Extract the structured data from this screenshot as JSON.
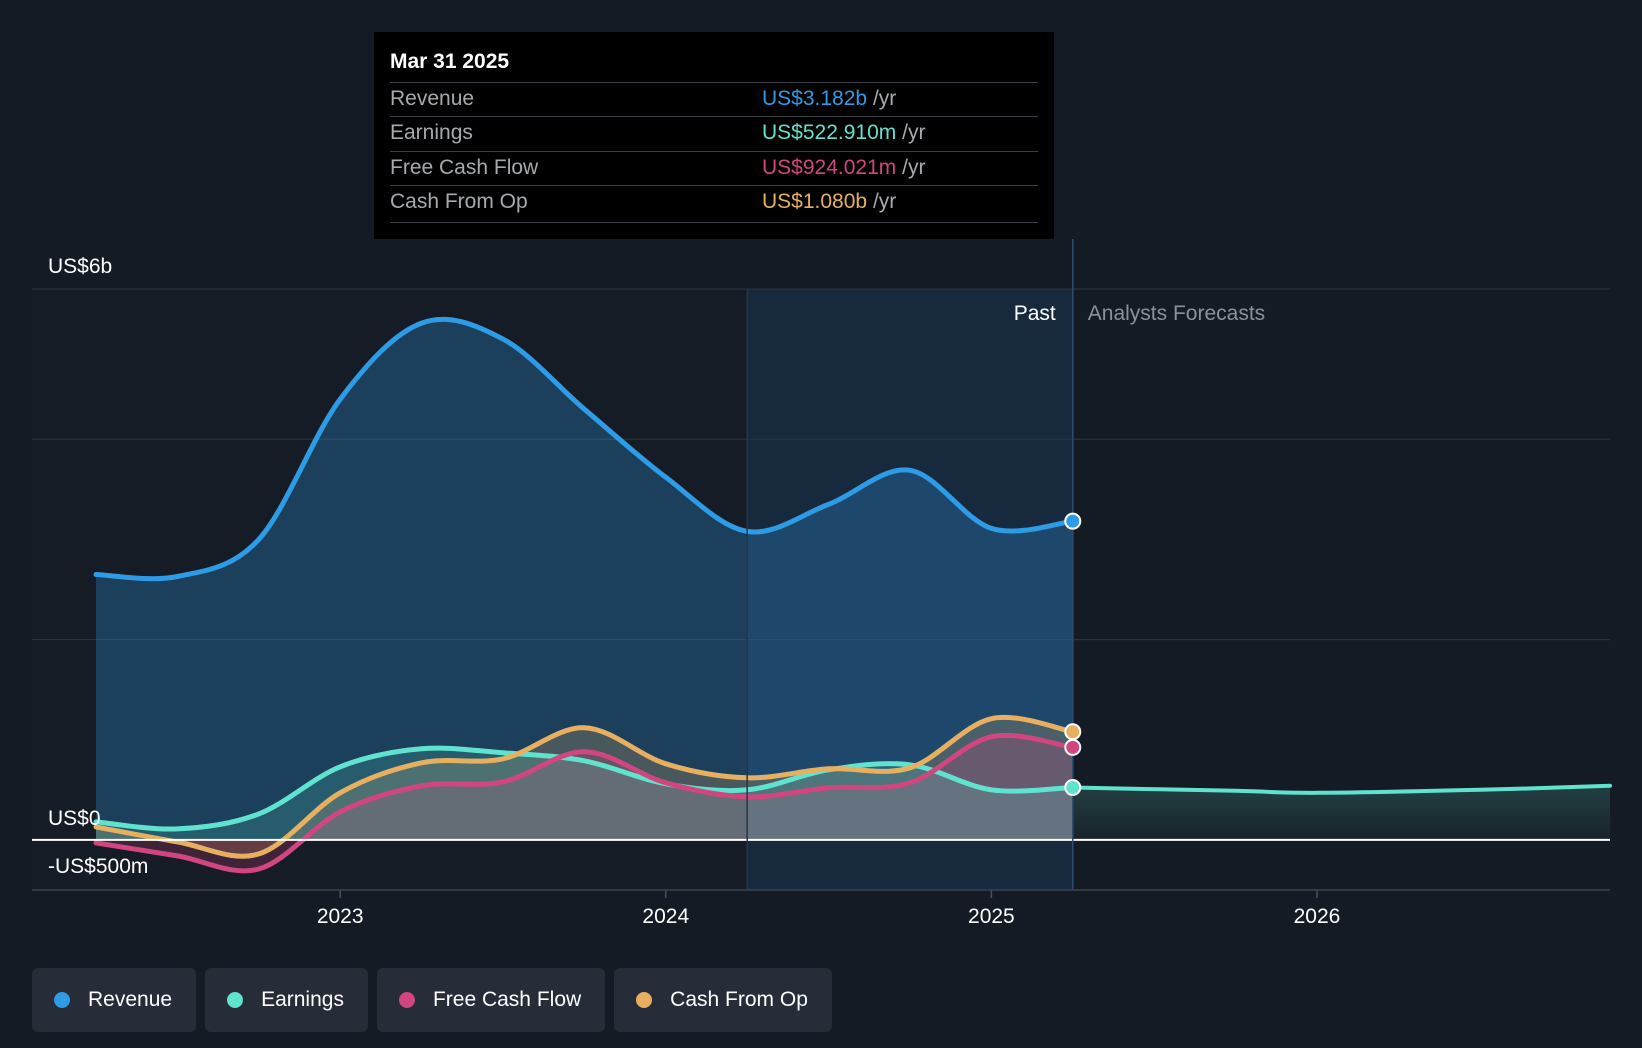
{
  "colors": {
    "revenue": "#2d9be5",
    "earnings": "#5fe3cf",
    "fcf": "#d2467f",
    "cfo": "#e7b061",
    "background": "#151b24"
  },
  "tooltip": {
    "date": "Mar 31 2025",
    "rows": [
      {
        "label": "Revenue",
        "value": "US$3.182b",
        "unit": "/yr"
      },
      {
        "label": "Earnings",
        "value": "US$522.910m",
        "unit": "/yr"
      },
      {
        "label": "Free Cash Flow",
        "value": "US$924.021m",
        "unit": "/yr"
      },
      {
        "label": "Cash From Op",
        "value": "US$1.080b",
        "unit": "/yr"
      }
    ]
  },
  "legend": [
    {
      "label": "Revenue"
    },
    {
      "label": "Earnings"
    },
    {
      "label": "Free Cash Flow"
    },
    {
      "label": "Cash From Op"
    }
  ],
  "chart_data": {
    "type": "line",
    "title": "",
    "xlabel": "",
    "ylabel": "",
    "y_unit": "US$ millions",
    "xlim": [
      2022.25,
      2026.9
    ],
    "ylim": [
      -500,
      5500
    ],
    "y_tick_labels": [
      {
        "value": 5500,
        "label": "US$6b"
      },
      {
        "value": 0,
        "label": "US$0"
      },
      {
        "value": -500,
        "label": "-US$500m"
      }
    ],
    "gridlines": [
      5500,
      4000,
      2000,
      0,
      -500
    ],
    "x_ticks": [
      {
        "value": 2023,
        "label": "2023"
      },
      {
        "value": 2024,
        "label": "2024"
      },
      {
        "value": 2025,
        "label": "2025"
      },
      {
        "value": 2026,
        "label": "2026"
      }
    ],
    "past_label": "Past",
    "forecast_label": "Analysts Forecasts",
    "past_end": 2025.25,
    "highlight_start": 2024.25,
    "series": [
      {
        "name": "Revenue",
        "key": "revenue",
        "points": [
          [
            2022.25,
            2650
          ],
          [
            2022.5,
            2630
          ],
          [
            2022.75,
            3000
          ],
          [
            2023.0,
            4400
          ],
          [
            2023.25,
            5160
          ],
          [
            2023.5,
            5000
          ],
          [
            2023.75,
            4300
          ],
          [
            2024.0,
            3620
          ],
          [
            2024.25,
            3080
          ],
          [
            2024.5,
            3350
          ],
          [
            2024.75,
            3690
          ],
          [
            2025.0,
            3110
          ],
          [
            2025.25,
            3182
          ]
        ],
        "forecast": []
      },
      {
        "name": "Earnings",
        "key": "earnings",
        "points": [
          [
            2022.25,
            180
          ],
          [
            2022.5,
            110
          ],
          [
            2022.75,
            260
          ],
          [
            2023.0,
            730
          ],
          [
            2023.25,
            910
          ],
          [
            2023.5,
            870
          ],
          [
            2023.75,
            790
          ],
          [
            2024.0,
            560
          ],
          [
            2024.25,
            500
          ],
          [
            2024.5,
            700
          ],
          [
            2024.75,
            750
          ],
          [
            2025.0,
            500
          ],
          [
            2025.25,
            523
          ]
        ],
        "forecast": [
          [
            2025.25,
            523
          ],
          [
            2025.75,
            490
          ],
          [
            2026.0,
            470
          ],
          [
            2026.5,
            500
          ],
          [
            2026.9,
            540
          ]
        ]
      },
      {
        "name": "Free Cash Flow",
        "key": "fcf",
        "points": [
          [
            2022.25,
            -30
          ],
          [
            2022.5,
            -160
          ],
          [
            2022.75,
            -290
          ],
          [
            2023.0,
            280
          ],
          [
            2023.25,
            540
          ],
          [
            2023.5,
            580
          ],
          [
            2023.75,
            880
          ],
          [
            2024.0,
            570
          ],
          [
            2024.25,
            430
          ],
          [
            2024.5,
            520
          ],
          [
            2024.75,
            570
          ],
          [
            2025.0,
            1030
          ],
          [
            2025.25,
            924
          ]
        ],
        "forecast": []
      },
      {
        "name": "Cash From Op",
        "key": "cfo",
        "points": [
          [
            2022.25,
            130
          ],
          [
            2022.5,
            -20
          ],
          [
            2022.75,
            -140
          ],
          [
            2023.0,
            470
          ],
          [
            2023.25,
            770
          ],
          [
            2023.5,
            810
          ],
          [
            2023.75,
            1120
          ],
          [
            2024.0,
            760
          ],
          [
            2024.25,
            620
          ],
          [
            2024.5,
            710
          ],
          [
            2024.75,
            720
          ],
          [
            2025.0,
            1210
          ],
          [
            2025.25,
            1080
          ]
        ],
        "forecast": []
      }
    ]
  }
}
